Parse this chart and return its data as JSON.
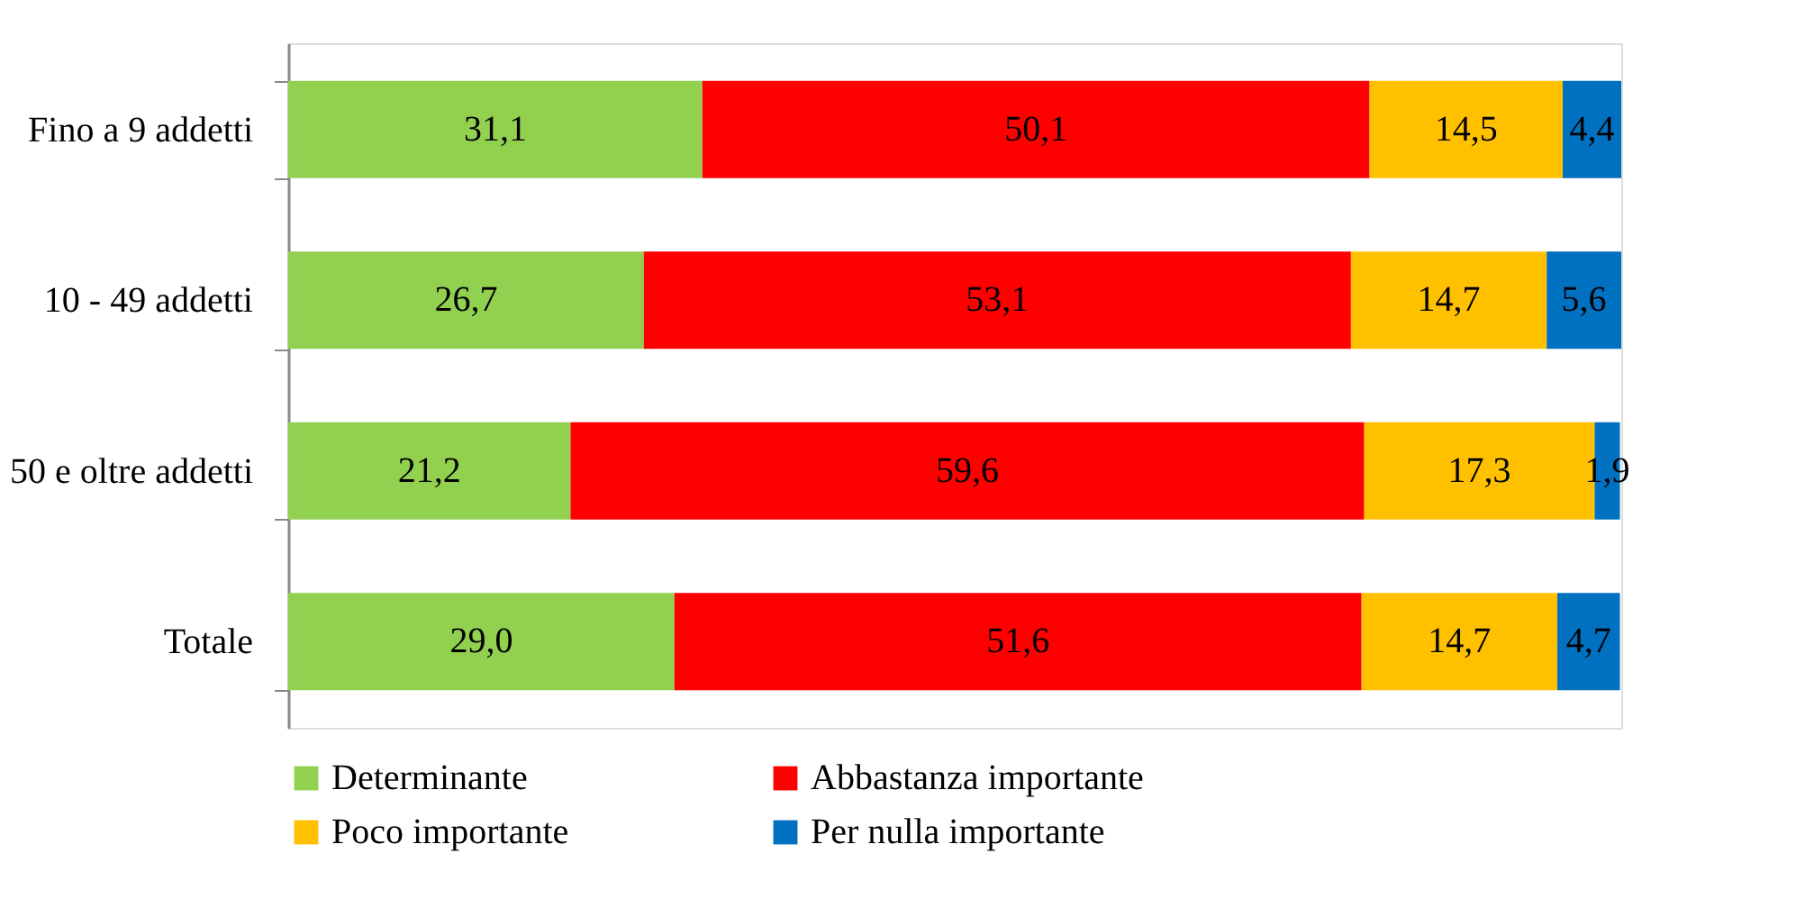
{
  "chart_data": {
    "type": "bar",
    "orientation": "horizontal",
    "stacked": true,
    "categories": [
      "Fino a 9 addetti",
      "10 - 49 addetti",
      "50 e oltre addetti",
      "Totale"
    ],
    "series": [
      {
        "name": "Determinante",
        "color": "#92d050",
        "values": [
          31.1,
          26.7,
          21.2,
          29.0
        ],
        "value_labels": [
          "31,1",
          "26,7",
          "21,2",
          "29,0"
        ]
      },
      {
        "name": "Abbastanza importante",
        "color": "#ff0000",
        "values": [
          50.1,
          53.1,
          59.6,
          51.6
        ],
        "value_labels": [
          "50,1",
          "53,1",
          "59,6",
          "51,6"
        ]
      },
      {
        "name": "Poco importante",
        "color": "#ffc000",
        "values": [
          14.5,
          14.7,
          17.3,
          14.7
        ],
        "value_labels": [
          "14,5",
          "14,7",
          "17,3",
          "14,7"
        ]
      },
      {
        "name": "Per nulla importante",
        "color": "#0070c0",
        "values": [
          4.4,
          5.6,
          1.9,
          4.7
        ],
        "value_labels": [
          "4,4",
          "5,6",
          "1,9",
          "4,7"
        ]
      }
    ],
    "legend": "bottom",
    "grid": false,
    "tick_labels": "y"
  }
}
